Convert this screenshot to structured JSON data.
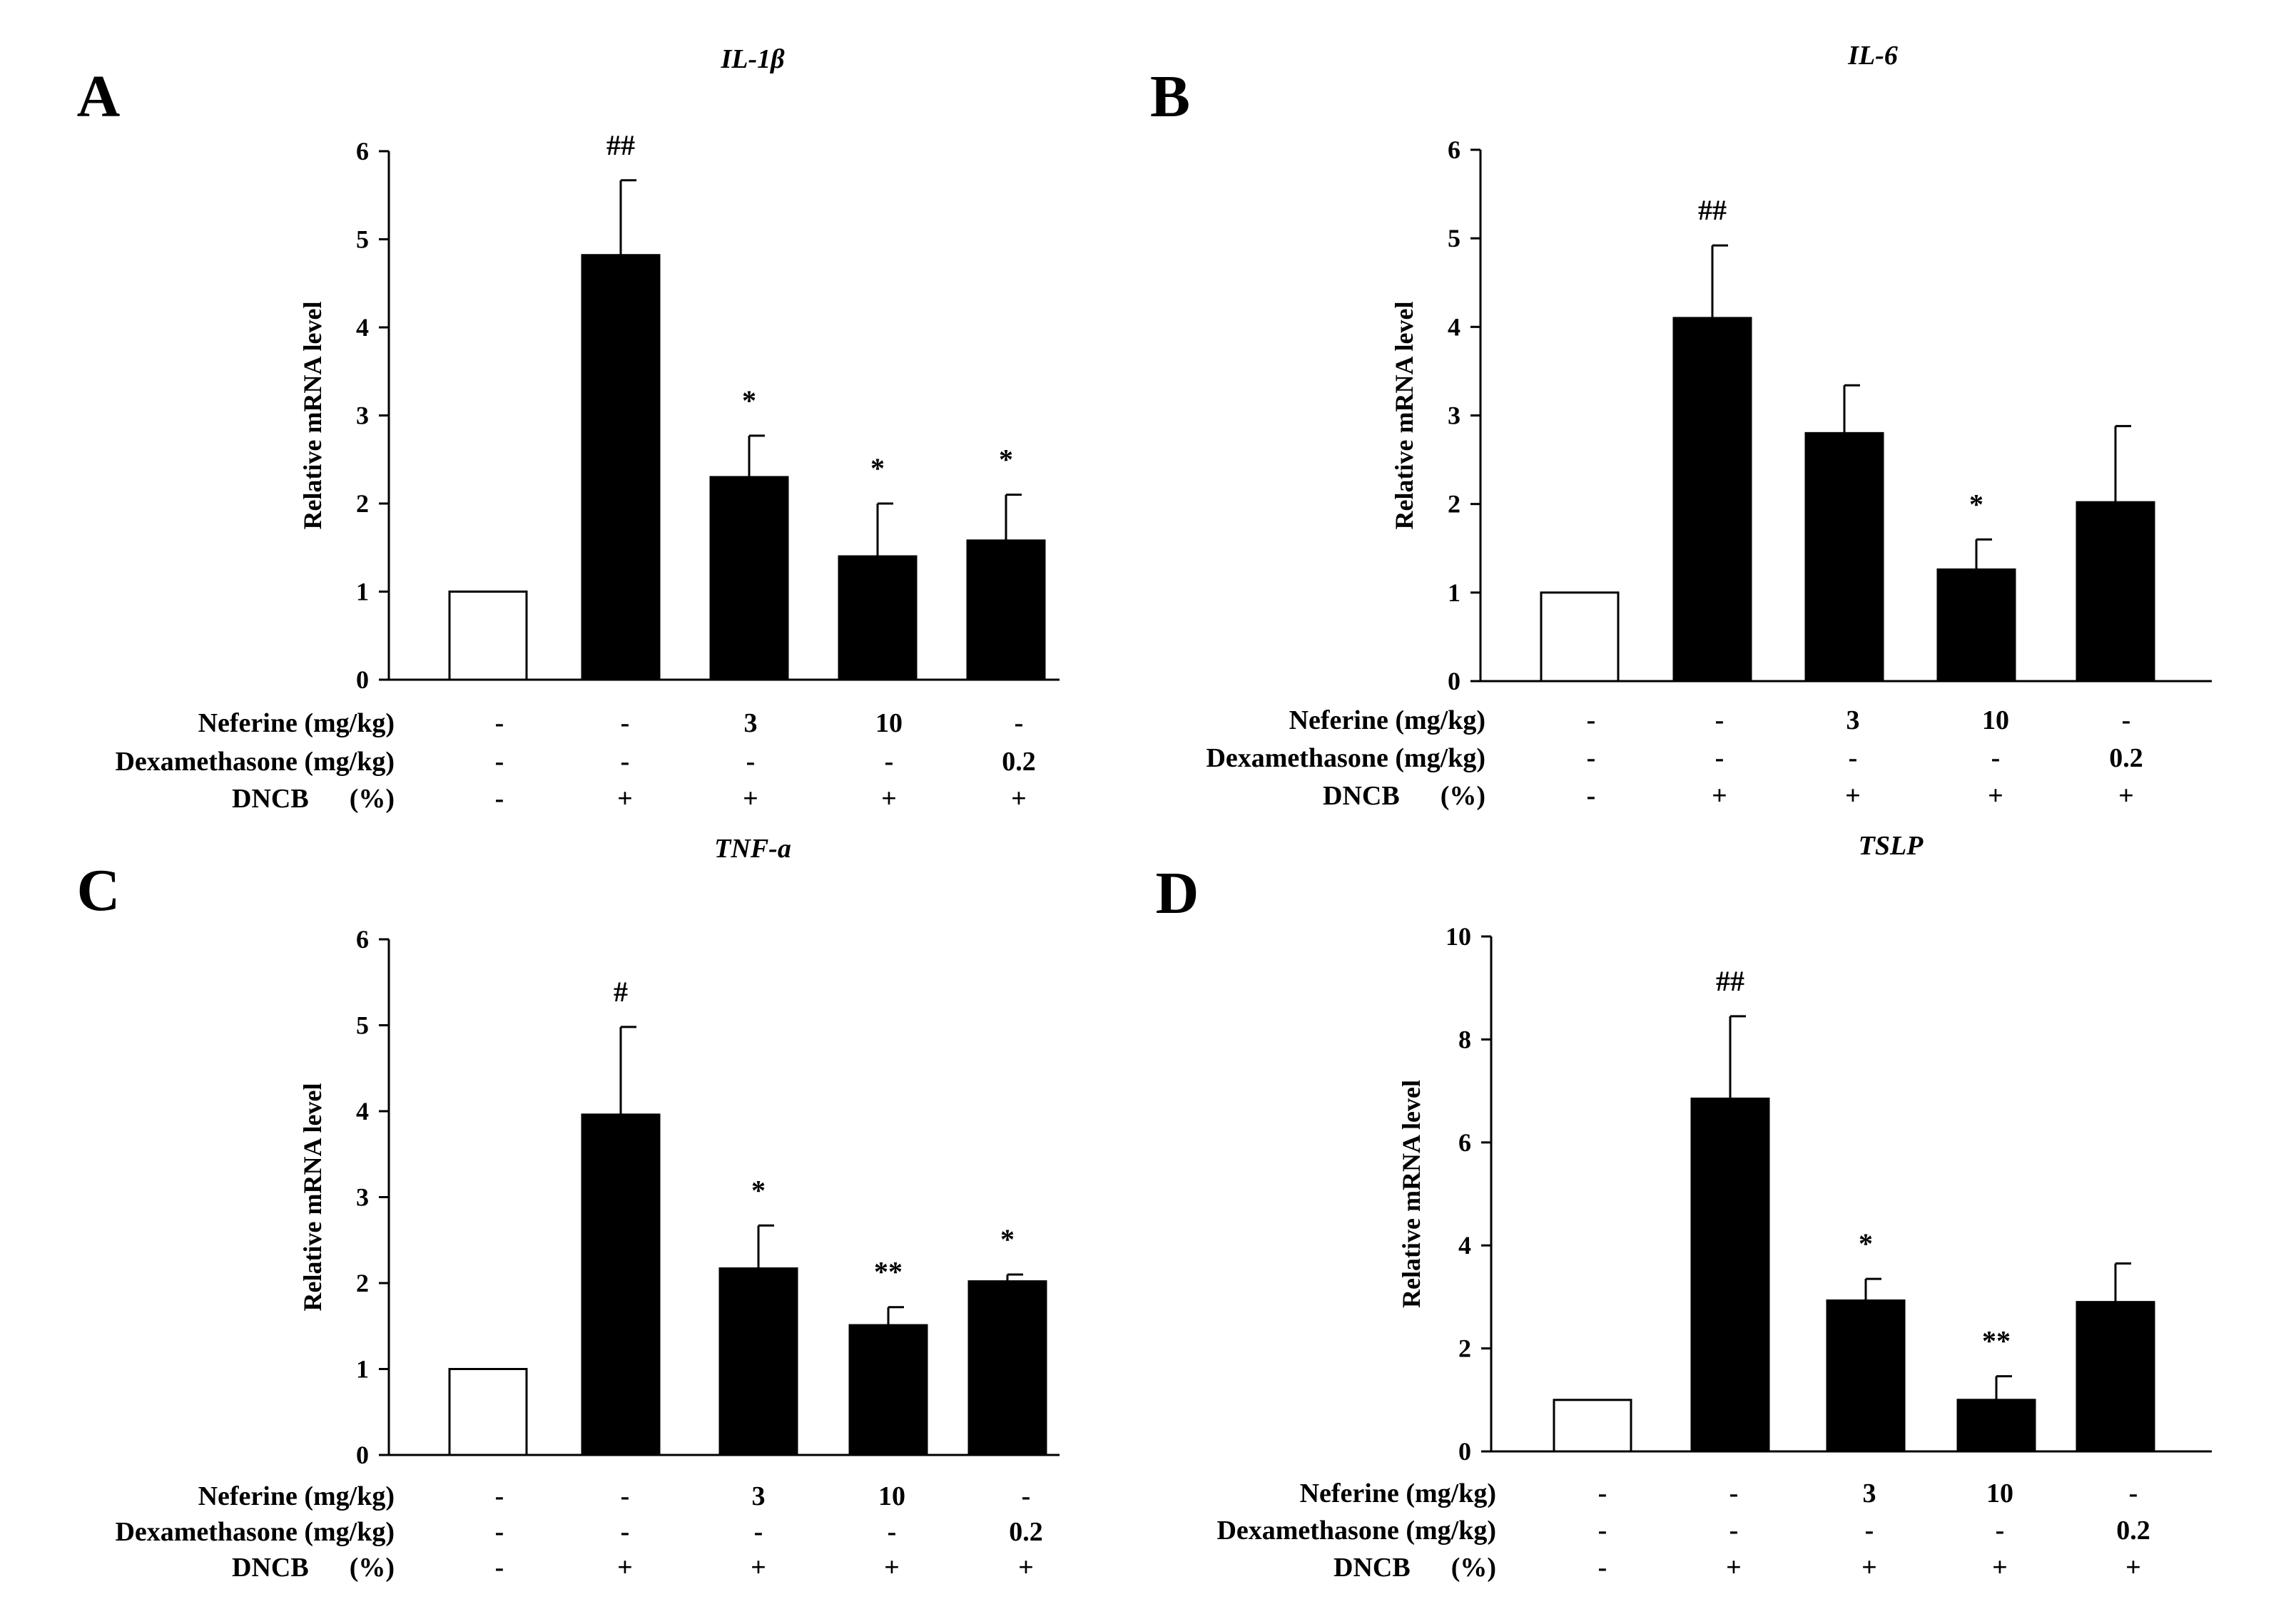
{
  "chart_data": [
    {
      "type": "bar",
      "panel": "A",
      "title": "IL-1β",
      "ylabel": "Relative mRNA level",
      "ylim": [
        0,
        6
      ],
      "yticks": [
        "0",
        "1",
        "2",
        "3",
        "4",
        "5",
        "6"
      ],
      "values": [
        1.0,
        4.82,
        2.3,
        1.4,
        1.58
      ],
      "errors": [
        0,
        0.85,
        0.47,
        0.6,
        0.52
      ],
      "fills": [
        "white",
        "black",
        "black",
        "black",
        "black"
      ],
      "significance": [
        "",
        "##",
        "*",
        "*",
        "*"
      ],
      "conditions": [
        {
          "label": "Neferine (mg/kg)",
          "values": [
            "-",
            "-",
            "3",
            "10",
            "-"
          ]
        },
        {
          "label": "Dexamethasone (mg/kg)",
          "values": [
            "-",
            "-",
            "-",
            "-",
            "0.2"
          ]
        },
        {
          "label": "DNCB      (%)",
          "values": [
            "-",
            "+",
            "+",
            "+",
            "+"
          ]
        }
      ]
    },
    {
      "type": "bar",
      "panel": "B",
      "title": "IL-6",
      "ylabel": "Relative mRNA level",
      "ylim": [
        0,
        6
      ],
      "yticks": [
        "0",
        "1",
        "2",
        "3",
        "4",
        "5",
        "6"
      ],
      "values": [
        1.0,
        4.1,
        2.8,
        1.26,
        2.02
      ],
      "errors": [
        0,
        0.82,
        0.54,
        0.34,
        0.86
      ],
      "fills": [
        "white",
        "black",
        "black",
        "black",
        "black"
      ],
      "significance": [
        "",
        "##",
        "",
        "*",
        ""
      ],
      "conditions": [
        {
          "label": "Neferine (mg/kg)",
          "values": [
            "-",
            "-",
            "3",
            "10",
            "-"
          ]
        },
        {
          "label": "Dexamethasone (mg/kg)",
          "values": [
            "-",
            "-",
            "-",
            "-",
            "0.2"
          ]
        },
        {
          "label": "DNCB      (%)",
          "values": [
            "-",
            "+",
            "+",
            "+",
            "+"
          ]
        }
      ]
    },
    {
      "type": "bar",
      "panel": "C",
      "title": "TNF-a",
      "ylabel": "Relative mRNA level",
      "ylim": [
        0,
        6
      ],
      "yticks": [
        "0",
        "1",
        "2",
        "3",
        "4",
        "5",
        "6"
      ],
      "values": [
        1.0,
        3.96,
        2.17,
        1.51,
        2.02
      ],
      "errors": [
        0,
        1.02,
        0.5,
        0.21,
        0.08
      ],
      "fills": [
        "white",
        "black",
        "black",
        "black",
        "black"
      ],
      "significance": [
        "",
        "#",
        "*",
        "**",
        "*"
      ],
      "conditions": [
        {
          "label": "Neferine (mg/kg)",
          "values": [
            "-",
            "-",
            "3",
            "10",
            "-"
          ]
        },
        {
          "label": "Dexamethasone (mg/kg)",
          "values": [
            "-",
            "-",
            "-",
            "-",
            "0.2"
          ]
        },
        {
          "label": "DNCB      (%)",
          "values": [
            "-",
            "+",
            "+",
            "+",
            "+"
          ]
        }
      ]
    },
    {
      "type": "bar",
      "panel": "D",
      "title": "TSLP",
      "ylabel": "Relative mRNA level",
      "ylim": [
        0,
        10
      ],
      "yticks": [
        "0",
        "2",
        "4",
        "6",
        "8",
        "10"
      ],
      "values": [
        1.0,
        6.85,
        2.93,
        1.0,
        2.9
      ],
      "errors": [
        0,
        1.6,
        0.42,
        0.46,
        0.75
      ],
      "fills": [
        "white",
        "black",
        "black",
        "black",
        "black"
      ],
      "significance": [
        "",
        "##",
        "*",
        "**",
        ""
      ],
      "conditions": [
        {
          "label": "Neferine (mg/kg)",
          "values": [
            "-",
            "-",
            "3",
            "10",
            "-"
          ]
        },
        {
          "label": "Dexamethasone (mg/kg)",
          "values": [
            "-",
            "-",
            "-",
            "-",
            "0.2"
          ]
        },
        {
          "label": "DNCB      (%)",
          "values": [
            "-",
            "+",
            "+",
            "+",
            "+"
          ]
        }
      ]
    }
  ]
}
